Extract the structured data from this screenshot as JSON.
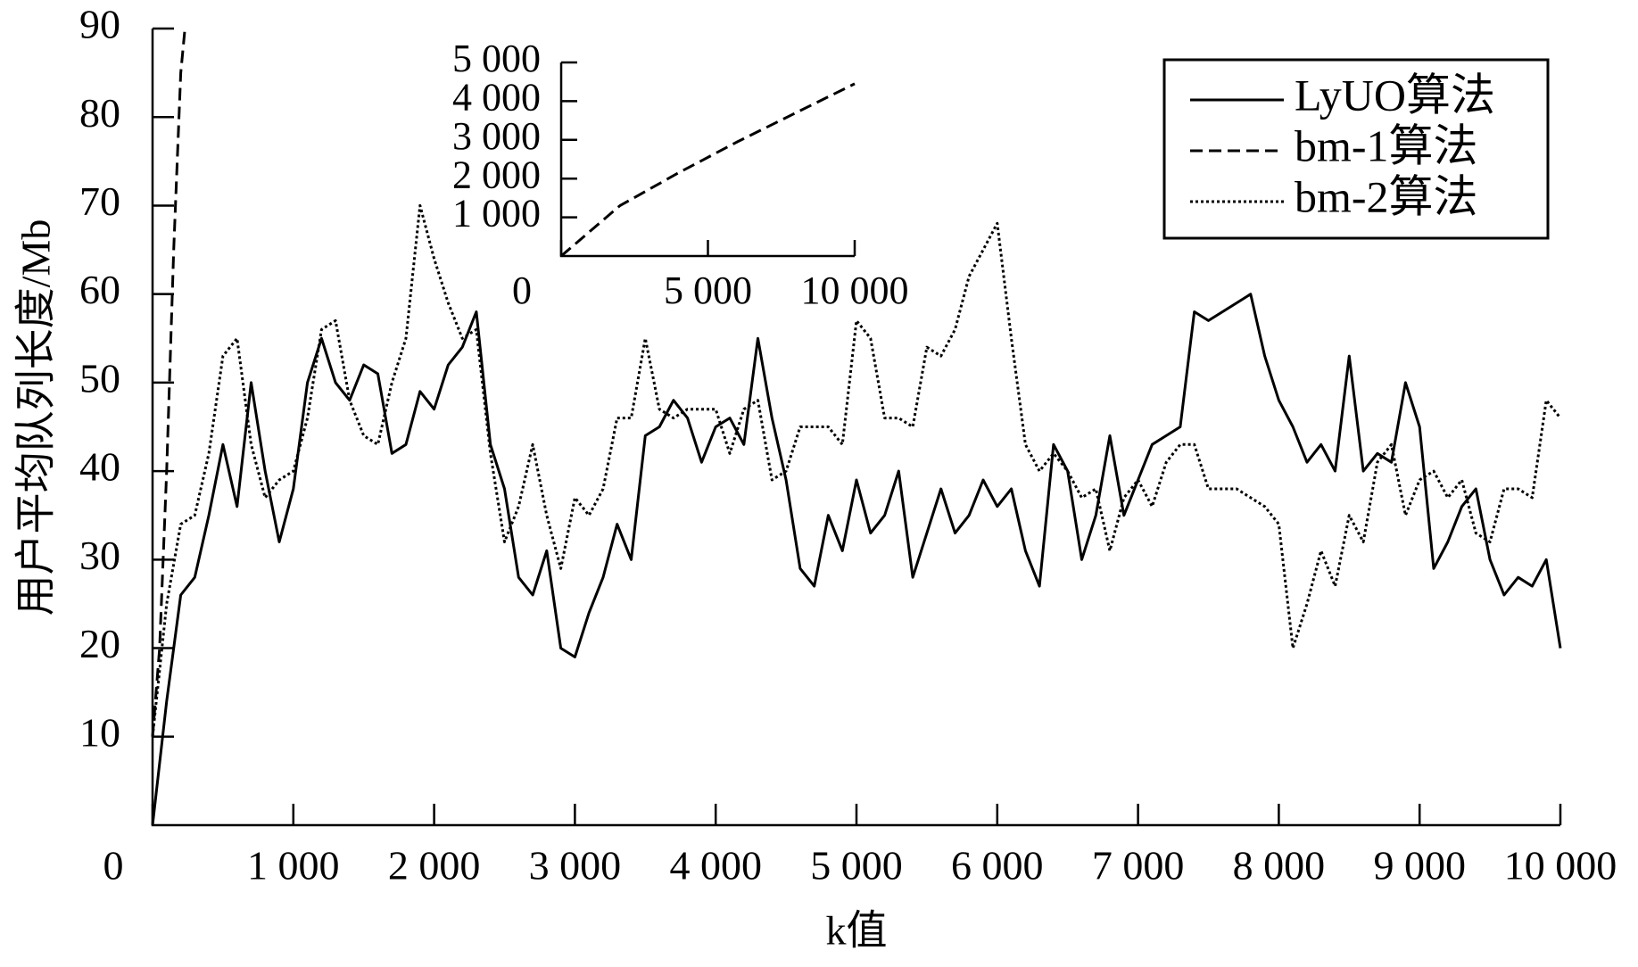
{
  "chart_data": [
    {
      "type": "line",
      "ylabel": "用户平均队列长度/Mb",
      "xlabel": "k值",
      "xlim": [
        0,
        10000
      ],
      "ylim": [
        0,
        90
      ],
      "xticks": [
        0,
        {
          "value": 1000,
          "label": "1 000"
        },
        {
          "value": 2000,
          "label": "2 000"
        },
        {
          "value": 3000,
          "label": "3 000"
        },
        {
          "value": 4000,
          "label": "4 000"
        },
        {
          "value": 5000,
          "label": "5 000"
        },
        {
          "value": 6000,
          "label": "6 000"
        },
        {
          "value": 7000,
          "label": "7 000"
        },
        {
          "value": 8000,
          "label": "8 000"
        },
        {
          "value": 9000,
          "label": "9 000"
        },
        {
          "value": 10000,
          "label": "10 000"
        }
      ],
      "yticks": [
        10,
        20,
        30,
        40,
        50,
        60,
        70,
        80,
        90
      ],
      "legend": "upper right",
      "x": [
        0,
        100,
        200,
        300,
        400,
        500,
        600,
        700,
        800,
        900,
        1000,
        1100,
        1200,
        1300,
        1400,
        1500,
        1600,
        1700,
        1800,
        1900,
        2000,
        2100,
        2200,
        2300,
        2400,
        2500,
        2600,
        2700,
        2800,
        2900,
        3000,
        3100,
        3200,
        3300,
        3400,
        3500,
        3600,
        3700,
        3800,
        3900,
        4000,
        4100,
        4200,
        4300,
        4400,
        4500,
        4600,
        4700,
        4800,
        4900,
        5000,
        5100,
        5200,
        5300,
        5400,
        5500,
        5600,
        5700,
        5800,
        5900,
        6000,
        6100,
        6200,
        6300,
        6400,
        6500,
        6600,
        6700,
        6800,
        6900,
        7000,
        7100,
        7200,
        7300,
        7400,
        7500,
        7600,
        7700,
        7800,
        7900,
        8000,
        8100,
        8200,
        8300,
        8400,
        8500,
        8600,
        8700,
        8800,
        8900,
        9000,
        9100,
        9200,
        9300,
        9400,
        9500,
        9600,
        9700,
        9800,
        9900,
        10000
      ],
      "series": [
        {
          "name": "LyUO算法",
          "color": "#000000",
          "style": "solid",
          "values": [
            0,
            14,
            26,
            28,
            35,
            43,
            36,
            50,
            40,
            32,
            38,
            50,
            55,
            50,
            48,
            52,
            51,
            42,
            43,
            49,
            47,
            52,
            54,
            58,
            43,
            38,
            28,
            26,
            31,
            20,
            19,
            24,
            28,
            34,
            30,
            44,
            45,
            48,
            46,
            41,
            45,
            46,
            43,
            55,
            46,
            39,
            29,
            27,
            35,
            31,
            39,
            33,
            35,
            40,
            28,
            33,
            38,
            33,
            35,
            39,
            36,
            38,
            31,
            27,
            43,
            40,
            30,
            35,
            44,
            35,
            39,
            43,
            44,
            45,
            58,
            57,
            58,
            59,
            60,
            53,
            48,
            45,
            41,
            43,
            40,
            53,
            40,
            42,
            41,
            50,
            45,
            29,
            32,
            36,
            38,
            30,
            26,
            28,
            27,
            30,
            20
          ]
        },
        {
          "name": "bm-1算法",
          "color": "#000000",
          "style": "dashed",
          "x": [
            0,
            50,
            100,
            150,
            200,
            230
          ],
          "values": [
            10,
            20,
            40,
            65,
            85,
            90
          ]
        },
        {
          "name": "bm-2算法",
          "color": "#000000",
          "style": "dotted",
          "values": [
            10,
            25,
            34,
            35,
            42,
            53,
            55,
            43,
            37,
            39,
            40,
            46,
            56,
            57,
            48,
            44,
            43,
            50,
            55,
            70,
            64,
            59,
            55,
            56,
            42,
            32,
            36,
            43,
            35,
            29,
            37,
            35,
            38,
            46,
            46,
            55,
            47,
            46,
            47,
            47,
            47,
            42,
            47,
            48,
            39,
            40,
            45,
            45,
            45,
            43,
            57,
            55,
            46,
            46,
            45,
            54,
            53,
            56,
            62,
            65,
            68,
            55,
            43,
            40,
            42,
            40,
            37,
            38,
            31,
            37,
            39,
            36,
            41,
            43,
            43,
            38,
            38,
            38,
            37,
            36,
            34,
            20,
            25,
            31,
            27,
            35,
            32,
            41,
            43,
            35,
            39,
            40,
            37,
            39,
            33,
            32,
            38,
            38,
            37,
            48,
            46
          ]
        }
      ]
    },
    {
      "type": "line",
      "xlim": [
        0,
        10000
      ],
      "ylim": [
        0,
        5000
      ],
      "xticks": [
        0,
        {
          "value": 5000,
          "label": "5 000"
        },
        {
          "value": 10000,
          "label": "10 000"
        }
      ],
      "yticks": [
        {
          "value": 1000,
          "label": "1 000"
        },
        {
          "value": 2000,
          "label": "2 000"
        },
        {
          "value": 3000,
          "label": "3 000"
        },
        {
          "value": 4000,
          "label": "4 000"
        },
        {
          "value": 5000,
          "label": "5 000"
        }
      ],
      "series": [
        {
          "color": "#000000",
          "style": "dashed",
          "x": [
            0,
            2000,
            4000,
            6000,
            8000,
            10000
          ],
          "values": [
            0,
            1300,
            2150,
            2950,
            3700,
            4450
          ]
        }
      ]
    }
  ]
}
